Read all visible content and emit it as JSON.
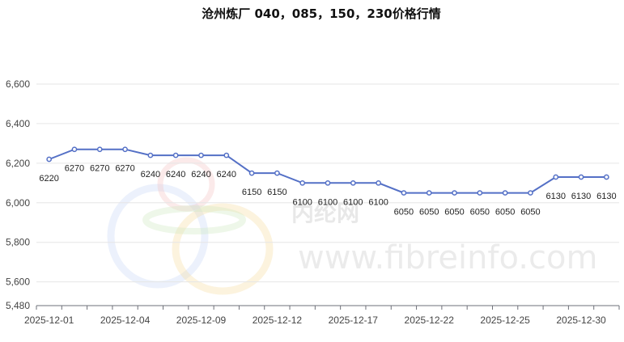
{
  "chart_data": {
    "type": "line",
    "title": "沧州炼厂 040，085，150，230价格行情",
    "xlabel": "",
    "ylabel": "",
    "ylim": [
      5480,
      6600
    ],
    "yticks": [
      5480,
      5600,
      5800,
      6000,
      6200,
      6400,
      6600
    ],
    "ytick_labels": [
      "5,480",
      "5,600",
      "5,800",
      "6,000",
      "6,200",
      "6,400",
      "6,600"
    ],
    "x": [
      "2025-12-01",
      "2025-12-02",
      "2025-12-03",
      "2025-12-04",
      "2025-12-05",
      "2025-12-08",
      "2025-12-09",
      "2025-12-10",
      "2025-12-11",
      "2025-12-12",
      "2025-12-15",
      "2025-12-16",
      "2025-12-17",
      "2025-12-18",
      "2025-12-19",
      "2025-12-22",
      "2025-12-23",
      "2025-12-24",
      "2025-12-25",
      "2025-12-26",
      "2025-12-29",
      "2025-12-30",
      "2025-12-31"
    ],
    "xtick_labels": [
      "2025-12-01",
      "2025-12-04",
      "2025-12-09",
      "2025-12-12",
      "2025-12-17",
      "2025-12-22",
      "2025-12-25",
      "2025-12-30"
    ],
    "series": [
      {
        "values": [
          6220,
          6270,
          6270,
          6270,
          6240,
          6240,
          6240,
          6240,
          6150,
          6150,
          6100,
          6100,
          6100,
          6100,
          6050,
          6050,
          6050,
          6050,
          6050,
          6050,
          6130,
          6130,
          6130
        ],
        "color": "#5470c6"
      }
    ],
    "grid": true,
    "legend": "none",
    "data_labels": true
  },
  "watermark": {
    "url_text": "www.fibreinfo.com",
    "cn_text": "内纶网"
  }
}
